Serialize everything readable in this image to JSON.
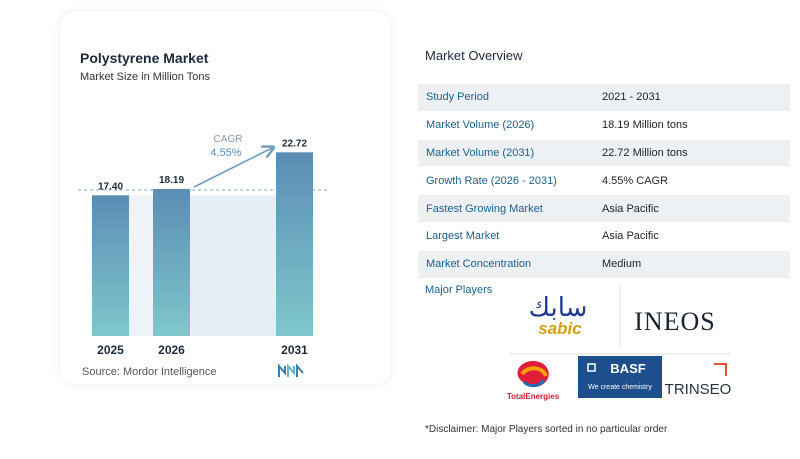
{
  "chart_data": {
    "type": "bar",
    "title": "Polystyrene Market",
    "subtitle": "Market Size in Million Tons",
    "categories": [
      "2025",
      "2026",
      "2031"
    ],
    "values": [
      17.4,
      18.19,
      22.72
    ],
    "value_labels": [
      "17.40",
      "18.19",
      "22.72"
    ],
    "cagr_label": "CAGR",
    "cagr_value": "4.55%",
    "colors": {
      "bar_top": "#5b8db4",
      "bar_bottom": "#7fc7cc",
      "band": "#e6eef5"
    },
    "grid": false,
    "legend": "none"
  },
  "source": "Source:  Mordor Intelligence",
  "overview": {
    "title": "Market Overview",
    "rows": [
      {
        "label": "Study Period",
        "value": "2021 - 2031"
      },
      {
        "label": "Market Volume (2026)",
        "value": "18.19 Million tons"
      },
      {
        "label": "Market Volume (2031)",
        "value": "22.72 Million tons"
      },
      {
        "label": "Growth Rate (2026 - 2031)",
        "value": "4.55% CAGR"
      },
      {
        "label": "Fastest Growing Market",
        "value": "Asia Pacific"
      },
      {
        "label": "Largest Market",
        "value": "Asia Pacific"
      },
      {
        "label": "Market Concentration",
        "value": "Medium"
      }
    ]
  },
  "players": {
    "label": "Major Players",
    "logos": {
      "sabic": {
        "arabic": "سابك",
        "latin": "sabic"
      },
      "ineos": "INEOS",
      "totalenergies": "TotalEnergies",
      "basf": {
        "name": "BASF",
        "tagline": "We create chemistry"
      },
      "trinseo": "TRINSEO"
    }
  },
  "disclaimer": "*Disclaimer: Major Players sorted in no particular order"
}
